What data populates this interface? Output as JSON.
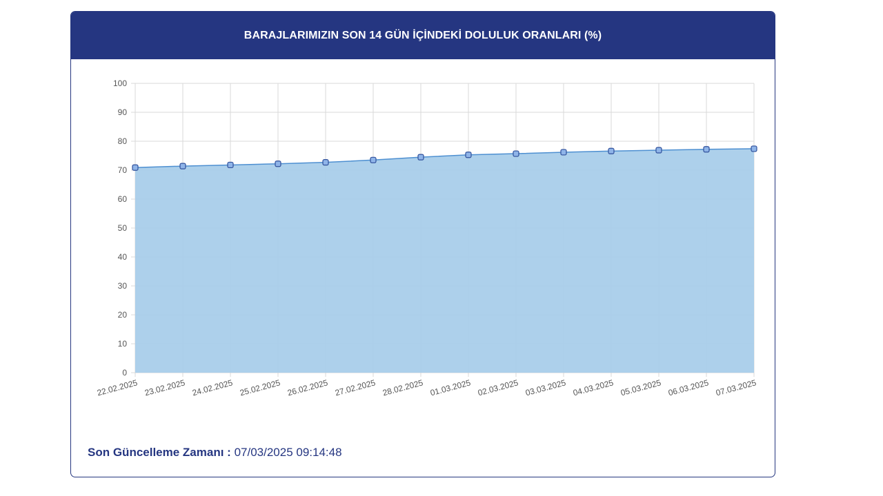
{
  "panel": {
    "title": "BARAJLARIMIZIN SON 14 GÜN İÇİNDEKİ DOLULUK ORANLARI (%)"
  },
  "footer": {
    "label": "Son Güncelleme Zamanı :",
    "value": "07/03/2025 09:14:48"
  },
  "colors": {
    "header_bg": "#253681",
    "area_fill": "#a9cdea",
    "line": "#4d8fd1",
    "marker_fill": "#8fb4e8",
    "marker_stroke": "#2f4f9a",
    "grid": "#d9d9d9"
  },
  "chart_data": {
    "type": "area",
    "title": "BARAJLARIMIZIN SON 14 GÜN İÇİNDEKİ DOLULUK ORANLARI (%)",
    "xlabel": "",
    "ylabel": "",
    "ylim": [
      0,
      100
    ],
    "yticks": [
      0,
      10,
      20,
      30,
      40,
      50,
      60,
      70,
      80,
      90,
      100
    ],
    "grid": true,
    "legend": "none",
    "categories": [
      "22.02.2025",
      "23.02.2025",
      "24.02.2025",
      "25.02.2025",
      "26.02.2025",
      "27.02.2025",
      "28.02.2025",
      "01.03.2025",
      "02.03.2025",
      "03.03.2025",
      "04.03.2025",
      "05.03.2025",
      "06.03.2025",
      "07.03.2025"
    ],
    "series": [
      {
        "values": [
          70.9,
          71.4,
          71.8,
          72.2,
          72.7,
          73.5,
          74.5,
          75.3,
          75.7,
          76.2,
          76.6,
          76.9,
          77.2,
          77.4
        ]
      }
    ]
  }
}
